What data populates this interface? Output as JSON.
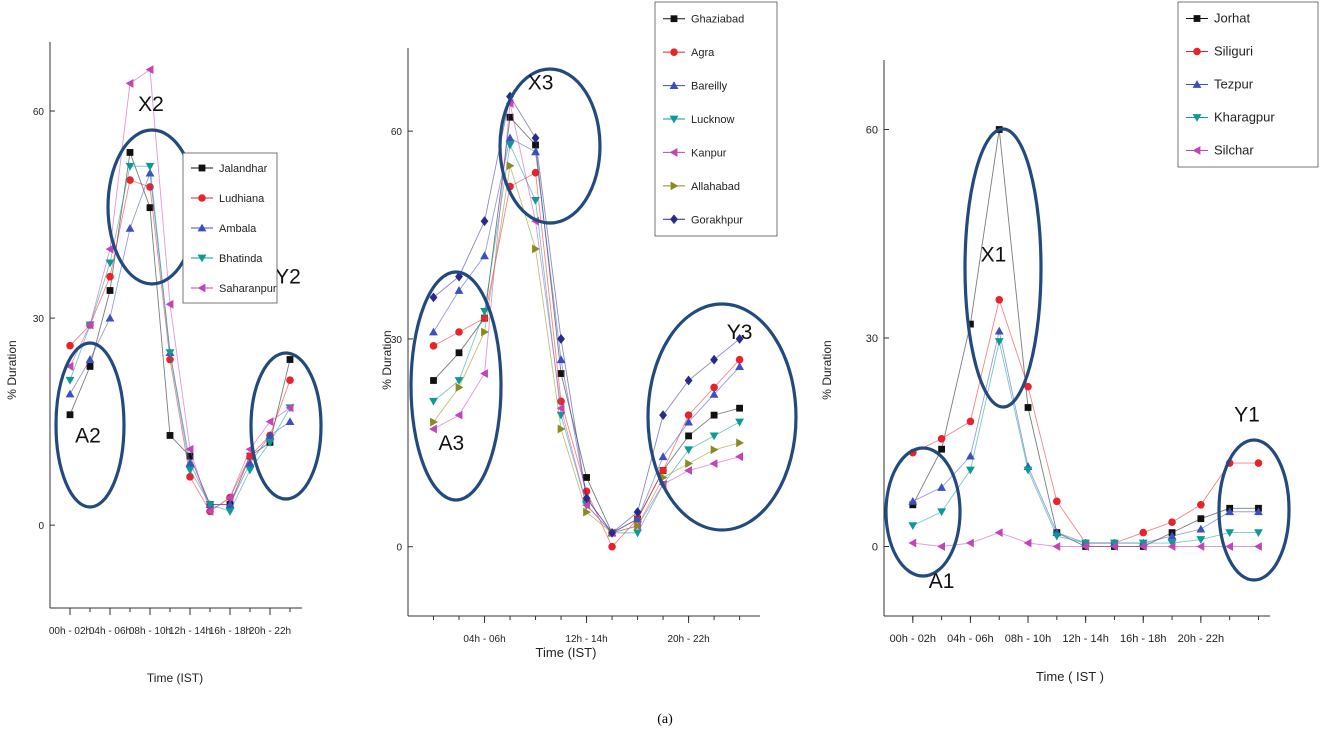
{
  "caption": "(a)",
  "chart_data": [
    {
      "type": "line",
      "title": "",
      "xlabel": "Time (IST)",
      "ylabel": "% Duration",
      "x": [
        1,
        2,
        3,
        4,
        5,
        6,
        7,
        8,
        9,
        10,
        11,
        12
      ],
      "xlim": [
        0,
        12.6
      ],
      "ylim": [
        -12,
        70
      ],
      "yticks": [
        0,
        30,
        60
      ],
      "xtick_labels": [
        {
          "x": 1,
          "label": "00h - 02h"
        },
        {
          "x": 3,
          "label": "04h - 06h"
        },
        {
          "x": 5,
          "label": "08h - 10h"
        },
        {
          "x": 7,
          "label": "12h - 14h"
        },
        {
          "x": 9,
          "label": "16h - 18h"
        },
        {
          "x": 11,
          "label": "20h - 22h"
        }
      ],
      "legend_position": "right",
      "series": [
        {
          "name": "Jalandhar",
          "color": "#111111",
          "marker": "square",
          "values": [
            16,
            23,
            34,
            54,
            46,
            13,
            10,
            3,
            3,
            10,
            12,
            24
          ]
        },
        {
          "name": "Ludhiana",
          "color": "#e8232a",
          "marker": "circle",
          "values": [
            26,
            29,
            36,
            50,
            49,
            24,
            7,
            2,
            4,
            10,
            13,
            21
          ]
        },
        {
          "name": "Ambala",
          "color": "#3c4fc0",
          "marker": "triangle-up",
          "values": [
            19,
            24,
            30,
            43,
            51,
            25,
            9,
            3,
            3,
            9,
            13,
            15
          ]
        },
        {
          "name": "Bhatinda",
          "color": "#0b9a94",
          "marker": "triangle-down",
          "values": [
            21,
            29,
            38,
            52,
            52,
            25,
            8,
            3,
            2,
            8,
            12,
            17
          ]
        },
        {
          "name": "Saharanpur",
          "color": "#c543b8",
          "marker": "triangle-left",
          "values": [
            23,
            29,
            40,
            64,
            66,
            32,
            11,
            2,
            4,
            11,
            15,
            17
          ]
        }
      ],
      "annotations": [
        {
          "label": "X2",
          "x": 5.05,
          "y": 60
        },
        {
          "label": "A2",
          "x": 1.9,
          "y": 12
        },
        {
          "label": "Y2",
          "x": 11.9,
          "y": 35
        }
      ]
    },
    {
      "type": "line",
      "title": "",
      "xlabel": "Time (IST)",
      "ylabel": "% Duration",
      "x": [
        1,
        2,
        3,
        4,
        5,
        6,
        7,
        8,
        9,
        10,
        11,
        12,
        13
      ],
      "xlim": [
        0,
        13.8
      ],
      "ylim": [
        -10,
        72
      ],
      "yticks": [
        0,
        30,
        60
      ],
      "xtick_labels": [
        {
          "x": 3,
          "label": "04h - 06h"
        },
        {
          "x": 7,
          "label": "12h - 14h"
        },
        {
          "x": 11,
          "label": "20h - 22h"
        }
      ],
      "legend_position": "top-right",
      "series": [
        {
          "name": "Ghaziabad",
          "color": "#111111",
          "marker": "square",
          "values": [
            24,
            28,
            33,
            62,
            58,
            25,
            10,
            2,
            4,
            11,
            16,
            19,
            20
          ]
        },
        {
          "name": "Agra",
          "color": "#e8232a",
          "marker": "circle",
          "values": [
            29,
            31,
            33,
            52,
            54,
            21,
            8,
            0,
            4,
            11,
            19,
            23,
            27
          ]
        },
        {
          "name": "Bareilly",
          "color": "#3c4fc0",
          "marker": "triangle-up",
          "values": [
            31,
            37,
            42,
            59,
            57,
            27,
            7,
            2,
            4,
            13,
            18,
            22,
            26
          ]
        },
        {
          "name": "Lucknow",
          "color": "#0b9a94",
          "marker": "triangle-down",
          "values": [
            21,
            24,
            34,
            58,
            50,
            19,
            6,
            2,
            2,
            9,
            14,
            16,
            18
          ]
        },
        {
          "name": "Kanpur",
          "color": "#c543b8",
          "marker": "triangle-left",
          "values": [
            17,
            19,
            25,
            64,
            47,
            20,
            6,
            2,
            3,
            9,
            11,
            12,
            13
          ]
        },
        {
          "name": "Allahabad",
          "color": "#8a8a1e",
          "marker": "triangle-right",
          "values": [
            18,
            23,
            31,
            55,
            43,
            17,
            5,
            2,
            3,
            10,
            12,
            14,
            15
          ]
        },
        {
          "name": "Gorakhpur",
          "color": "#2a2a8c",
          "marker": "diamond",
          "values": [
            36,
            39,
            47,
            65,
            59,
            30,
            7,
            2,
            5,
            19,
            24,
            27,
            30
          ]
        }
      ],
      "annotations": [
        {
          "label": "X3",
          "x": 5.2,
          "y": 66
        },
        {
          "label": "A3",
          "x": 1.7,
          "y": 14
        },
        {
          "label": "Y3",
          "x": 13.0,
          "y": 30
        }
      ]
    },
    {
      "type": "line",
      "title": "",
      "xlabel": "Time ( IST )",
      "ylabel": "% Duration",
      "x": [
        1,
        2,
        3,
        4,
        5,
        6,
        7,
        8,
        9,
        10,
        11,
        12,
        13
      ],
      "xlim": [
        0,
        13.4
      ],
      "ylim": [
        -10,
        70
      ],
      "yticks": [
        0,
        30,
        60
      ],
      "xtick_labels": [
        {
          "x": 1,
          "label": "00h - 02h"
        },
        {
          "x": 3,
          "label": "04h - 06h"
        },
        {
          "x": 5,
          "label": "08h - 10h"
        },
        {
          "x": 7,
          "label": "12h - 14h"
        },
        {
          "x": 9,
          "label": "16h - 18h"
        },
        {
          "x": 11,
          "label": "20h - 22h"
        }
      ],
      "legend_position": "top-right",
      "series": [
        {
          "name": "Jorhat",
          "color": "#111111",
          "marker": "square",
          "values": [
            6,
            14,
            32,
            60,
            20,
            2,
            0,
            0,
            0,
            2,
            4,
            5.5,
            5.5
          ]
        },
        {
          "name": "Siliguri",
          "color": "#e8232a",
          "marker": "circle",
          "values": [
            13.5,
            15.5,
            18,
            35.5,
            23,
            6.5,
            0.5,
            0.5,
            2,
            3.5,
            6,
            12,
            12
          ]
        },
        {
          "name": "Tezpur",
          "color": "#3c4fc0",
          "marker": "triangle-up",
          "values": [
            6.5,
            8.5,
            13,
            31,
            11.5,
            2,
            0.5,
            0.5,
            0.5,
            1.5,
            2.5,
            5,
            5
          ]
        },
        {
          "name": "Kharagpur",
          "color": "#0b9a94",
          "marker": "triangle-down",
          "values": [
            3,
            5,
            11,
            29.5,
            11,
            1.5,
            0.5,
            0.5,
            0.5,
            0.5,
            1,
            2,
            2
          ]
        },
        {
          "name": "Silchar",
          "color": "#c543b8",
          "marker": "triangle-left",
          "values": [
            0.5,
            0,
            0.5,
            2,
            0.5,
            0,
            0,
            0,
            0,
            0,
            0,
            0,
            0
          ]
        }
      ],
      "annotations": [
        {
          "label": "X1",
          "x": 3.8,
          "y": 41
        },
        {
          "label": "A1",
          "x": 2.0,
          "y": -6
        },
        {
          "label": "Y1",
          "x": 12.6,
          "y": 18
        }
      ]
    }
  ]
}
